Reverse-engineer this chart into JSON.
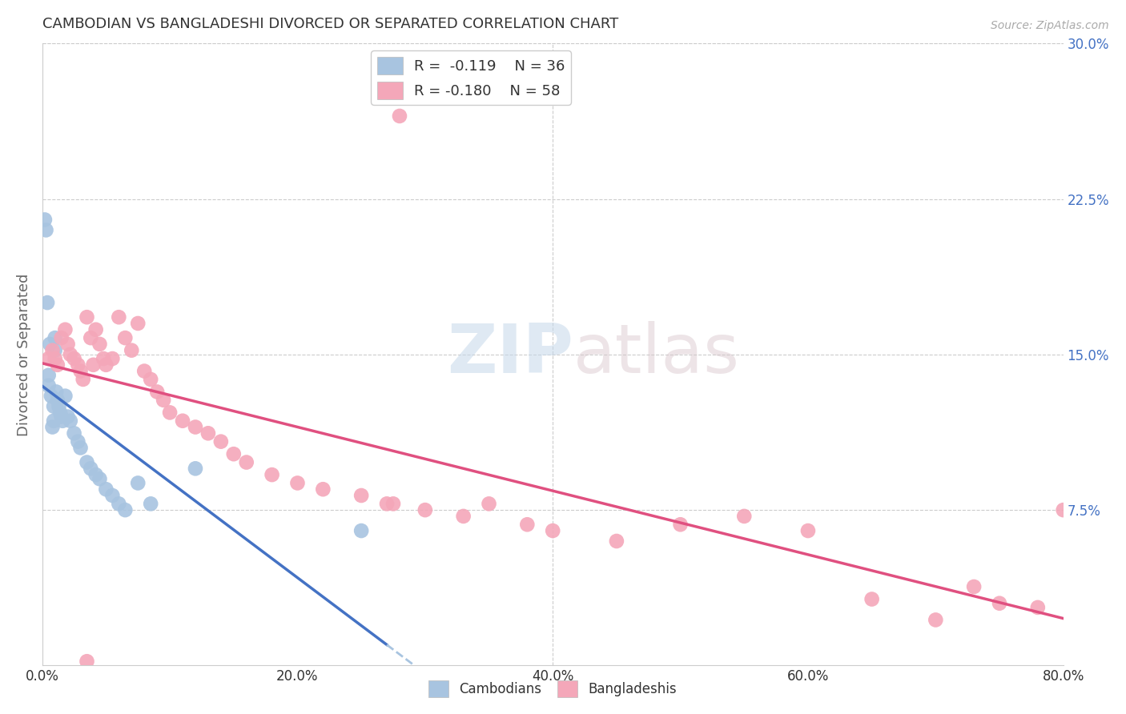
{
  "title": "CAMBODIAN VS BANGLADESHI DIVORCED OR SEPARATED CORRELATION CHART",
  "source": "Source: ZipAtlas.com",
  "ylabel": "Divorced or Separated",
  "watermark_zip": "ZIP",
  "watermark_atlas": "atlas",
  "xlim": [
    0.0,
    0.8
  ],
  "ylim": [
    0.0,
    0.3
  ],
  "yticks_right": [
    0.075,
    0.15,
    0.225,
    0.3
  ],
  "ytick_labels_right": [
    "7.5%",
    "15.0%",
    "22.5%",
    "30.0%"
  ],
  "xtick_vals": [
    0.0,
    0.2,
    0.4,
    0.6,
    0.8
  ],
  "xtick_labels": [
    "0.0%",
    "20.0%",
    "40.0%",
    "60.0%",
    "80.0%"
  ],
  "legend_cambodian_R": "-0.119",
  "legend_cambodian_N": "36",
  "legend_bangladeshi_R": "-0.180",
  "legend_bangladeshi_N": "58",
  "cambodian_color": "#a8c4e0",
  "bangladeshi_color": "#f4a7b9",
  "trendline_cambodian_color": "#4472c4",
  "trendline_bangladeshi_color": "#e05080",
  "trendline_cambodian_dashed_color": "#a8c4e0",
  "grid_color": "#cccccc",
  "background_color": "#ffffff",
  "right_tick_color": "#4472c4",
  "cambodian_x": [
    0.002,
    0.003,
    0.004,
    0.005,
    0.005,
    0.006,
    0.007,
    0.008,
    0.009,
    0.009,
    0.01,
    0.01,
    0.011,
    0.012,
    0.013,
    0.014,
    0.015,
    0.016,
    0.018,
    0.02,
    0.022,
    0.025,
    0.028,
    0.03,
    0.035,
    0.038,
    0.042,
    0.045,
    0.05,
    0.055,
    0.06,
    0.065,
    0.075,
    0.085,
    0.12,
    0.25
  ],
  "cambodian_y": [
    0.215,
    0.21,
    0.175,
    0.14,
    0.135,
    0.155,
    0.13,
    0.115,
    0.125,
    0.118,
    0.158,
    0.152,
    0.132,
    0.128,
    0.125,
    0.122,
    0.12,
    0.118,
    0.13,
    0.12,
    0.118,
    0.112,
    0.108,
    0.105,
    0.098,
    0.095,
    0.092,
    0.09,
    0.085,
    0.082,
    0.078,
    0.075,
    0.088,
    0.078,
    0.095,
    0.065
  ],
  "bangladeshi_x": [
    0.005,
    0.008,
    0.01,
    0.012,
    0.015,
    0.018,
    0.02,
    0.022,
    0.025,
    0.028,
    0.03,
    0.032,
    0.035,
    0.038,
    0.04,
    0.042,
    0.045,
    0.048,
    0.05,
    0.055,
    0.06,
    0.065,
    0.07,
    0.075,
    0.08,
    0.085,
    0.09,
    0.095,
    0.1,
    0.11,
    0.12,
    0.13,
    0.14,
    0.15,
    0.16,
    0.18,
    0.2,
    0.22,
    0.25,
    0.275,
    0.28,
    0.3,
    0.33,
    0.35,
    0.38,
    0.4,
    0.45,
    0.5,
    0.55,
    0.6,
    0.65,
    0.7,
    0.73,
    0.75,
    0.78,
    0.8,
    0.27,
    0.035
  ],
  "bangladeshi_y": [
    0.148,
    0.152,
    0.148,
    0.145,
    0.158,
    0.162,
    0.155,
    0.15,
    0.148,
    0.145,
    0.142,
    0.138,
    0.168,
    0.158,
    0.145,
    0.162,
    0.155,
    0.148,
    0.145,
    0.148,
    0.168,
    0.158,
    0.152,
    0.165,
    0.142,
    0.138,
    0.132,
    0.128,
    0.122,
    0.118,
    0.115,
    0.112,
    0.108,
    0.102,
    0.098,
    0.092,
    0.088,
    0.085,
    0.082,
    0.078,
    0.265,
    0.075,
    0.072,
    0.078,
    0.068,
    0.065,
    0.06,
    0.068,
    0.072,
    0.065,
    0.032,
    0.022,
    0.038,
    0.03,
    0.028,
    0.075,
    0.078,
    0.002
  ]
}
